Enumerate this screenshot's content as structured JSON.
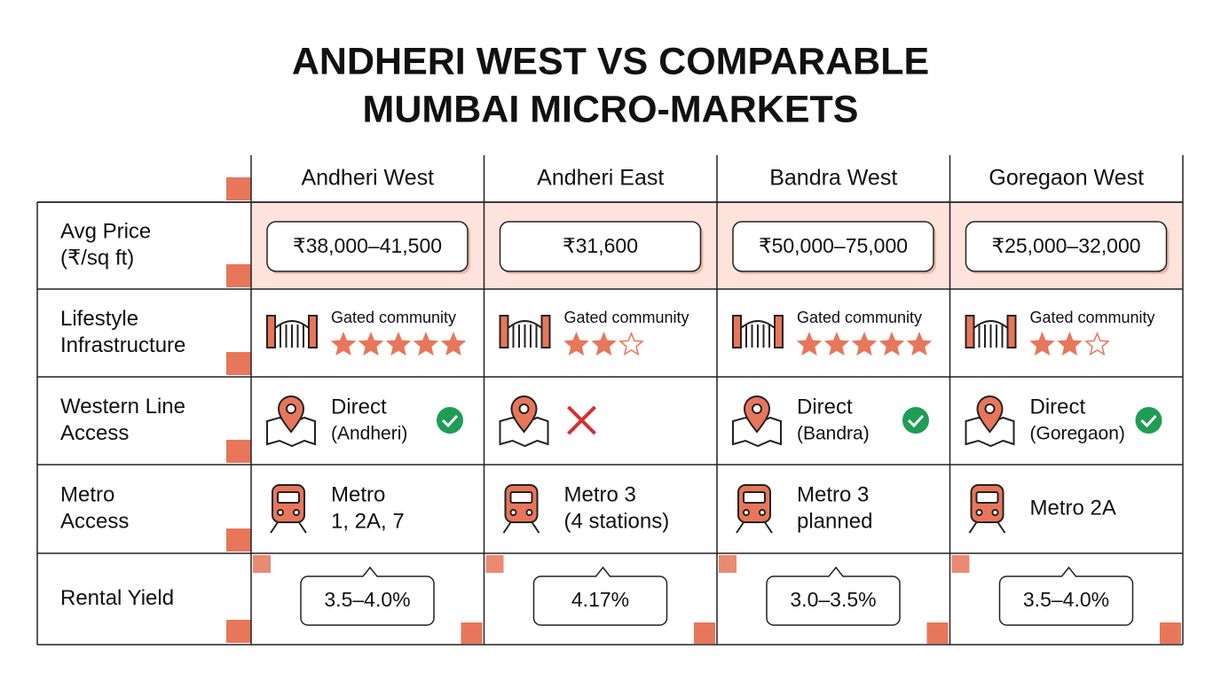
{
  "title_lines": [
    "ANDHERI WEST VS COMPARABLE",
    "MUMBAI MICRO-MARKETS"
  ],
  "columns": [
    "Andheri West",
    "Andheri East",
    "Bandra West",
    "Goregaon West"
  ],
  "rows": [
    {
      "label": [
        "Avg Price",
        "(₹/sq ft)"
      ],
      "kind": "price",
      "cells": [
        "₹38,000–41,500",
        "₹31,600",
        "₹50,000–75,000",
        "₹25,000–32,000"
      ]
    },
    {
      "label": [
        "Lifestyle",
        "Infrastructure"
      ],
      "kind": "lifestyle",
      "cells": [
        {
          "text": "Gated community",
          "stars": 5,
          "max_stars": 5
        },
        {
          "text": "Gated community",
          "stars": 2,
          "max_stars": 3
        },
        {
          "text": "Gated community",
          "stars": 5,
          "max_stars": 5
        },
        {
          "text": "Gated community",
          "stars": 2,
          "max_stars": 3
        }
      ]
    },
    {
      "label": [
        "Western Line",
        "Access"
      ],
      "kind": "western",
      "cells": [
        {
          "lines": [
            "Direct",
            "(Andheri)"
          ],
          "connected": true
        },
        {
          "connected": false
        },
        {
          "lines": [
            "Direct",
            "(Bandra)"
          ],
          "connected": true
        },
        {
          "lines": [
            "Direct",
            "(Goregaon)"
          ],
          "connected": true
        }
      ]
    },
    {
      "label": [
        "Metro",
        "Access"
      ],
      "kind": "metro",
      "cells": [
        [
          "Metro",
          "1, 2A, 7"
        ],
        [
          "Metro 3",
          "(4 stations)"
        ],
        [
          "Metro 3",
          "planned"
        ],
        [
          "Metro 2A"
        ]
      ]
    },
    {
      "label": [
        "Rental Yield"
      ],
      "kind": "yield",
      "cells": [
        "3.5–4.0%",
        "4.17%",
        "3.0–3.5%",
        "3.5–4.0%"
      ]
    }
  ]
}
